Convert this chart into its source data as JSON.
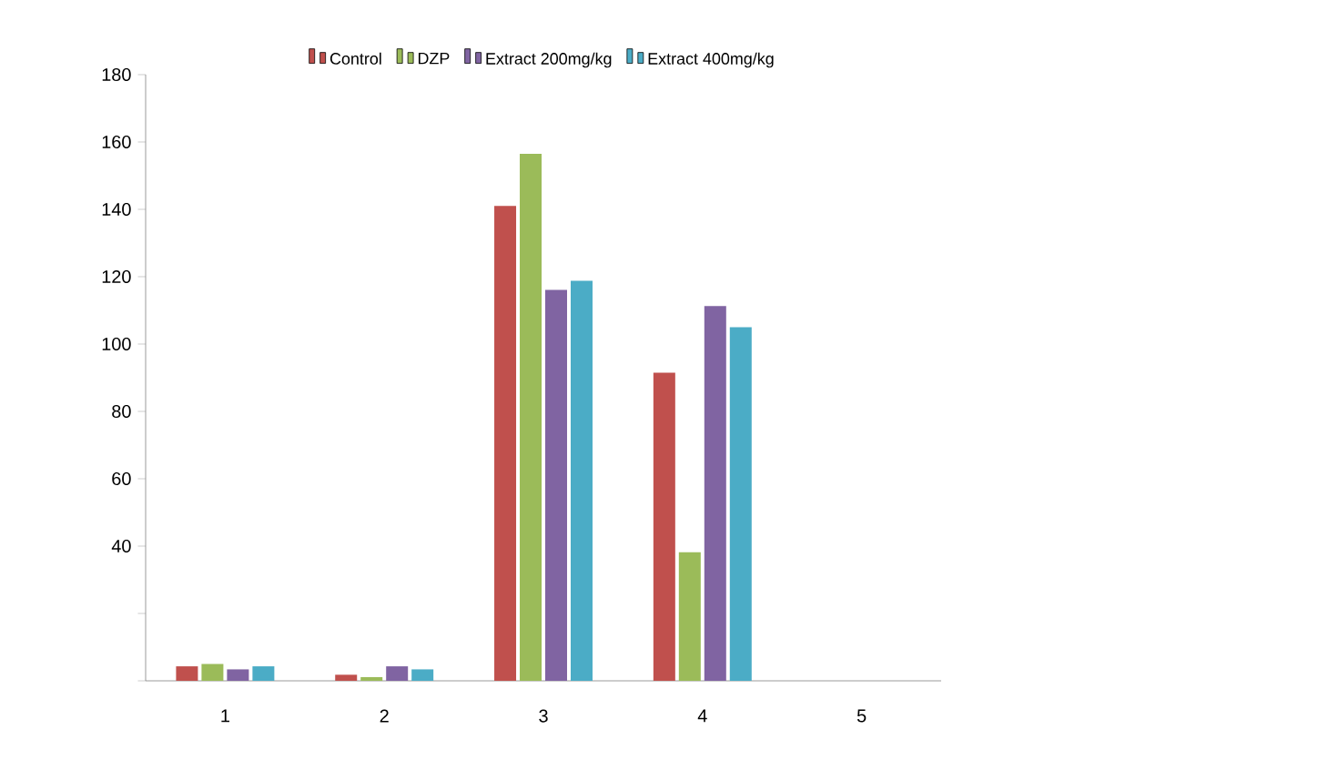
{
  "chart_data": {
    "type": "bar",
    "categories": [
      "1",
      "2",
      "3",
      "4",
      "5"
    ],
    "series": [
      {
        "name": "Control",
        "color": "#c0504d",
        "values": [
          4.3,
          1.8,
          141,
          91.5,
          null
        ]
      },
      {
        "name": "DZP",
        "color": "#9bbb59",
        "values": [
          5,
          1.1,
          156.5,
          38.2,
          null
        ]
      },
      {
        "name": "Extract 200mg/kg",
        "color": "#8064a2",
        "values": [
          3.4,
          4.3,
          116.1,
          111.3,
          null
        ]
      },
      {
        "name": "Extract 400mg/kg",
        "color": "#4bacc6",
        "values": [
          4.3,
          3.4,
          118.8,
          105,
          null
        ]
      }
    ],
    "ylim": [
      0,
      180
    ],
    "yticks": [
      {
        "value": 0,
        "label": null
      },
      {
        "value": 20,
        "label": null
      },
      40,
      60,
      80,
      100,
      120,
      140,
      160,
      180
    ],
    "grid": false,
    "legend": "top"
  }
}
